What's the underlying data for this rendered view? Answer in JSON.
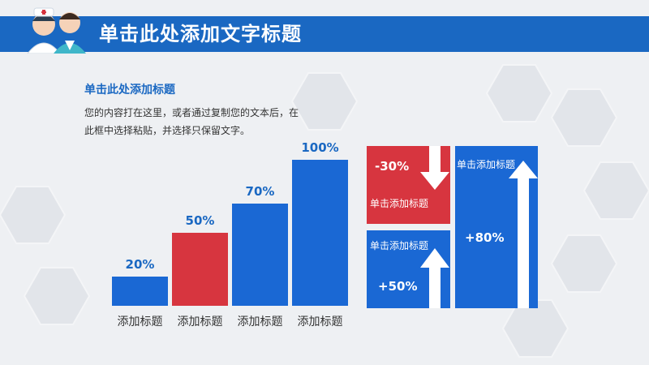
{
  "header": {
    "title": "单击此处添加文字标题"
  },
  "intro": {
    "subtitle": "单击此处添加标题",
    "body": "您的内容打在这里，或者通过复制您的文本后，在此框中选择粘贴，并选择只保留文字。"
  },
  "chart_data": {
    "type": "bar",
    "categories": [
      "添加标题",
      "添加标题",
      "添加标题",
      "添加标题"
    ],
    "values": [
      20,
      50,
      70,
      100
    ],
    "value_labels": [
      "20%",
      "50%",
      "70%",
      "100%"
    ],
    "colors": [
      "#1a68d4",
      "#d7353f",
      "#1a68d4",
      "#1a68d4"
    ],
    "ylim": [
      0,
      100
    ],
    "grid": false
  },
  "cards": {
    "card1": {
      "label": "单击添加标题",
      "value": "-30%",
      "color": "#d7353f",
      "arrow": "down"
    },
    "card2": {
      "label": "单击添加标题",
      "value": "+50%",
      "color": "#1a68d4",
      "arrow": "up"
    },
    "card3": {
      "label": "单击添加标题",
      "value": "+80%",
      "color": "#1a68d4",
      "arrow": "up"
    }
  }
}
